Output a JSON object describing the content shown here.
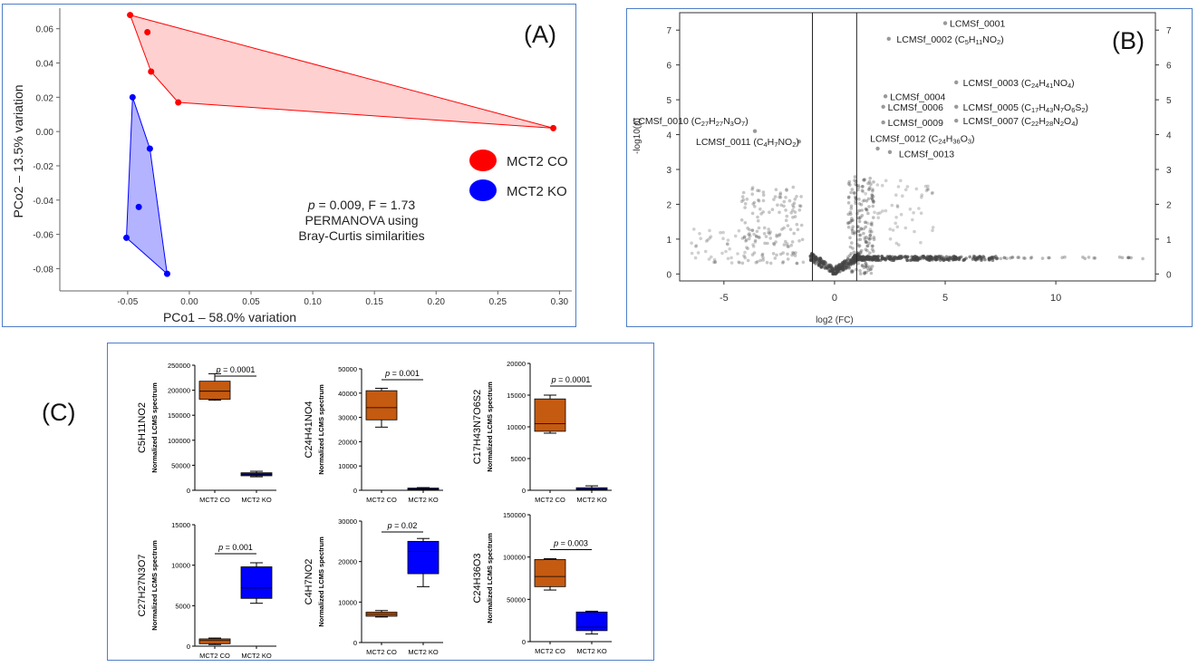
{
  "colors": {
    "co_red": "#ff0000",
    "co_fill": "#ffc8c8",
    "ko_blue": "#0000ff",
    "ko_fill": "#a6a6ff",
    "box_orange": "#c55a11",
    "box_blue": "#0000ff",
    "frame": "#4f7ec6"
  },
  "chart_data": [
    {
      "type": "scatter",
      "panel_label": "(A)",
      "xlabel": "PCo1 – 58.0% variation",
      "ylabel": "PCo2 – 13.5% variation",
      "xlim": [
        -0.105,
        0.31
      ],
      "ylim": [
        -0.093,
        0.072
      ],
      "xticks": [
        -0.05,
        0,
        0.05,
        0.1,
        0.15,
        0.2,
        0.25,
        0.3
      ],
      "xtick_labels": [
        "-0.05",
        "0.00",
        "0.05",
        "0.10",
        "0.15",
        "0.20",
        "0.25",
        "0.30"
      ],
      "yticks": [
        0.06,
        0.04,
        0.02,
        0,
        -0.02,
        -0.04,
        -0.06,
        -0.08
      ],
      "ytick_labels": [
        "0.06",
        "0.04",
        "0.02",
        "0.00",
        "-0.02",
        "-0.04",
        "-0.06",
        "-0.08"
      ],
      "series": [
        {
          "name": "MCT2 CO",
          "color": "#ff0000",
          "hull_color": "#ffc8c8",
          "x": [
            -0.048,
            -0.034,
            -0.031,
            -0.009,
            0.295
          ],
          "y": [
            0.068,
            0.058,
            0.035,
            0.017,
            0.002
          ],
          "hull_order": [
            0,
            2,
            3,
            4
          ]
        },
        {
          "name": "MCT2 KO",
          "color": "#0000ff",
          "hull_color": "#a6a6ff",
          "x": [
            -0.046,
            -0.032,
            -0.041,
            -0.051,
            -0.018
          ],
          "y": [
            0.02,
            -0.01,
            -0.044,
            -0.062,
            -0.083
          ],
          "hull_order": [
            0,
            1,
            4,
            3
          ]
        }
      ],
      "annotation": {
        "line1_p": "p",
        "line1_rest": " = 0.009, F = 1.73",
        "line2": "PERMANOVA  using",
        "line3": "Bray-Curtis similarities"
      }
    },
    {
      "type": "scatter",
      "panel_label": "(B)",
      "xlabel": "log2 (FC)",
      "ylabel": "-log10(p)",
      "xlim": [
        -7,
        14.5
      ],
      "ylim": [
        -0.2,
        7.5
      ],
      "xticks": [
        -5,
        0,
        5,
        10
      ],
      "xtick_labels": [
        "-5",
        "0",
        "5",
        "10"
      ],
      "yticks": [
        0,
        1,
        2,
        3,
        4,
        5,
        6,
        7
      ],
      "ytick_labels": [
        "0",
        "1",
        "2",
        "3",
        "4",
        "5",
        "6",
        "7"
      ],
      "vlines": [
        -1,
        1
      ],
      "labels": [
        {
          "x": 5.0,
          "y": 7.2,
          "parts": [
            {
              "t": "LCMSf_0001"
            }
          ]
        },
        {
          "x": 2.6,
          "y": 6.75,
          "parts": [
            {
              "t": "LCMSf_0002 (C"
            },
            {
              "t": "5",
              "s": 1
            },
            {
              "t": "H"
            },
            {
              "t": "11",
              "s": 1
            },
            {
              "t": "NO"
            },
            {
              "t": "2",
              "s": 1
            },
            {
              "t": ")"
            }
          ]
        },
        {
          "x": 5.6,
          "y": 5.5,
          "parts": [
            {
              "t": "LCMSf_0003 (C"
            },
            {
              "t": "24",
              "s": 1
            },
            {
              "t": "H"
            },
            {
              "t": "41",
              "s": 1
            },
            {
              "t": "NO"
            },
            {
              "t": "4",
              "s": 1
            },
            {
              "t": ")"
            }
          ]
        },
        {
          "x": 2.3,
          "y": 5.1,
          "parts": [
            {
              "t": "LCMSf_0004"
            }
          ]
        },
        {
          "x": 5.6,
          "y": 4.8,
          "parts": [
            {
              "t": "LCMSf_0005 (C"
            },
            {
              "t": "17",
              "s": 1
            },
            {
              "t": "H"
            },
            {
              "t": "43",
              "s": 1
            },
            {
              "t": "N"
            },
            {
              "t": "7",
              "s": 1
            },
            {
              "t": "O"
            },
            {
              "t": "6",
              "s": 1
            },
            {
              "t": "S"
            },
            {
              "t": "2",
              "s": 1
            },
            {
              "t": ")"
            }
          ]
        },
        {
          "x": 2.2,
          "y": 4.8,
          "parts": [
            {
              "t": "LCMSf_0006"
            }
          ]
        },
        {
          "x": 5.6,
          "y": 4.4,
          "parts": [
            {
              "t": "LCMSf_0007 (C"
            },
            {
              "t": "22",
              "s": 1
            },
            {
              "t": "H"
            },
            {
              "t": "28",
              "s": 1
            },
            {
              "t": "N"
            },
            {
              "t": "2",
              "s": 1
            },
            {
              "t": "O"
            },
            {
              "t": "4",
              "s": 1
            },
            {
              "t": ")"
            }
          ]
        },
        {
          "x": 2.2,
          "y": 4.35,
          "parts": [
            {
              "t": "LCMSf_0009"
            }
          ]
        },
        {
          "x": -3.9,
          "y": 4.4,
          "anchor": "end",
          "parts": [
            {
              "t": "LCMSf_0010 (C"
            },
            {
              "t": "27",
              "s": 1
            },
            {
              "t": "H"
            },
            {
              "t": "27",
              "s": 1
            },
            {
              "t": "N"
            },
            {
              "t": "3",
              "s": 1
            },
            {
              "t": "O"
            },
            {
              "t": "7",
              "s": 1
            },
            {
              "t": ")"
            }
          ]
        },
        {
          "x": -1.6,
          "y": 3.8,
          "anchor": "end",
          "parts": [
            {
              "t": "LCMSf_0011 (C"
            },
            {
              "t": "4",
              "s": 1
            },
            {
              "t": "H"
            },
            {
              "t": "7",
              "s": 1
            },
            {
              "t": "NO"
            },
            {
              "t": "2",
              "s": 1
            },
            {
              "t": ")"
            }
          ]
        },
        {
          "x": 1.4,
          "y": 3.9,
          "parts": [
            {
              "t": "LCMSf_0012 (C"
            },
            {
              "t": "24",
              "s": 1
            },
            {
              "t": "H"
            },
            {
              "t": "36",
              "s": 1
            },
            {
              "t": "O"
            },
            {
              "t": "3",
              "s": 1
            },
            {
              "t": ")"
            }
          ]
        },
        {
          "x": 2.7,
          "y": 3.45,
          "parts": [
            {
              "t": "LCMSf_0013"
            }
          ]
        }
      ],
      "highlight_points": [
        [
          5.0,
          7.2
        ],
        [
          2.45,
          6.75
        ],
        [
          5.5,
          5.5
        ],
        [
          2.3,
          5.1
        ],
        [
          5.5,
          4.8
        ],
        [
          2.2,
          4.8
        ],
        [
          5.5,
          4.4
        ],
        [
          2.2,
          4.35
        ],
        [
          -3.6,
          4.1
        ],
        [
          -1.6,
          3.8
        ],
        [
          1.95,
          3.6
        ],
        [
          2.5,
          3.5
        ]
      ]
    },
    {
      "type": "box",
      "panel_label": "(C)",
      "ylabel": "C5H11NO2",
      "ylabel2": "Normalized LCMS spectrum",
      "ylim": [
        0,
        250000
      ],
      "yticks": [
        0,
        50000,
        100000,
        150000,
        200000,
        250000
      ],
      "ytick_labels": [
        "0",
        "50000",
        "100000",
        "150000",
        "200000",
        "250000"
      ],
      "categories": [
        "MCT2 CO",
        "MCT2 KO"
      ],
      "boxes": [
        {
          "min": 180000,
          "q1": 182000,
          "median": 198000,
          "q3": 218000,
          "max": 233000
        },
        {
          "min": 27000,
          "q1": 29000,
          "median": 32000,
          "q3": 35000,
          "max": 38000
        }
      ],
      "p_text": "p = 0.0001",
      "p_over": [
        0,
        1
      ]
    },
    {
      "type": "box",
      "ylabel": "C24H41NO4",
      "ylabel2": "Normalized LCMS spectrum",
      "ylim": [
        0,
        50000
      ],
      "yticks": [
        0,
        10000,
        20000,
        30000,
        40000,
        50000
      ],
      "ytick_labels": [
        "0",
        "10000",
        "20000",
        "30000",
        "40000",
        "50000"
      ],
      "categories": [
        "MCT2 CO",
        "MCT2 KO"
      ],
      "boxes": [
        {
          "min": 26000,
          "q1": 29000,
          "median": 34000,
          "q3": 41000,
          "max": 42000
        },
        {
          "min": 300,
          "q1": 500,
          "median": 700,
          "q3": 900,
          "max": 1100
        }
      ],
      "p_text": "p = 0.001",
      "p_over": [
        0,
        1
      ]
    },
    {
      "type": "box",
      "ylabel": "C17H43N7O6S2",
      "ylabel2": "Normalized LCMS spectrum",
      "ylim": [
        0,
        20000
      ],
      "yticks": [
        0,
        5000,
        10000,
        15000,
        20000
      ],
      "ytick_labels": [
        "0",
        "5000",
        "10000",
        "15000",
        "20000"
      ],
      "categories": [
        "MCT2 CO",
        "MCT2 KO"
      ],
      "boxes": [
        {
          "min": 9000,
          "q1": 9300,
          "median": 10500,
          "q3": 14400,
          "max": 15000
        },
        {
          "min": 50,
          "q1": 100,
          "median": 200,
          "q3": 400,
          "max": 700
        }
      ],
      "p_text": "p = 0.0001",
      "p_over": [
        0,
        1
      ]
    },
    {
      "type": "box",
      "ylabel": "C27H27N3O7",
      "ylabel2": "Normalized LCMS spectrum",
      "ylim": [
        0,
        15000
      ],
      "yticks": [
        0,
        5000,
        10000,
        15000
      ],
      "ytick_labels": [
        "0",
        "5000",
        "10000",
        "15000"
      ],
      "categories": [
        "MCT2 CO",
        "MCT2 KO"
      ],
      "boxes": [
        {
          "min": 200,
          "q1": 300,
          "median": 700,
          "q3": 900,
          "max": 1000
        },
        {
          "min": 5300,
          "q1": 5900,
          "median": 7200,
          "q3": 9800,
          "max": 10300
        }
      ],
      "p_text": "p = 0.001",
      "p_over": [
        0,
        1
      ]
    },
    {
      "type": "box",
      "ylabel": "C4H7NO2",
      "ylabel2": "Normalized LCMS spectrum",
      "ylim": [
        0,
        30000
      ],
      "yticks": [
        0,
        10000,
        20000,
        30000
      ],
      "ytick_labels": [
        "0",
        "10000",
        "20000",
        "30000"
      ],
      "categories": [
        "MCT2 CO",
        "MCT2 KO"
      ],
      "boxes": [
        {
          "min": 6300,
          "q1": 6500,
          "median": 7000,
          "q3": 7500,
          "max": 7900
        },
        {
          "min": 13800,
          "q1": 17000,
          "median": 22500,
          "q3": 25000,
          "max": 25700
        }
      ],
      "p_text": "p = 0.02",
      "p_over": [
        0,
        1
      ]
    },
    {
      "type": "box",
      "ylabel": "C24H36O3",
      "ylabel2": "Normalized LCMS spectrum",
      "ylim": [
        0,
        150000
      ],
      "yticks": [
        0,
        50000,
        100000,
        150000
      ],
      "ytick_labels": [
        "0",
        "50000",
        "100000",
        "150000"
      ],
      "categories": [
        "MCT2 CO",
        "MCT2 KO"
      ],
      "boxes": [
        {
          "min": 61000,
          "q1": 65000,
          "median": 77000,
          "q3": 97000,
          "max": 98000
        },
        {
          "min": 9000,
          "q1": 13000,
          "median": 17000,
          "q3": 35000,
          "max": 36000
        }
      ],
      "p_text": "p = 0.003",
      "p_over": [
        0,
        1
      ]
    }
  ]
}
